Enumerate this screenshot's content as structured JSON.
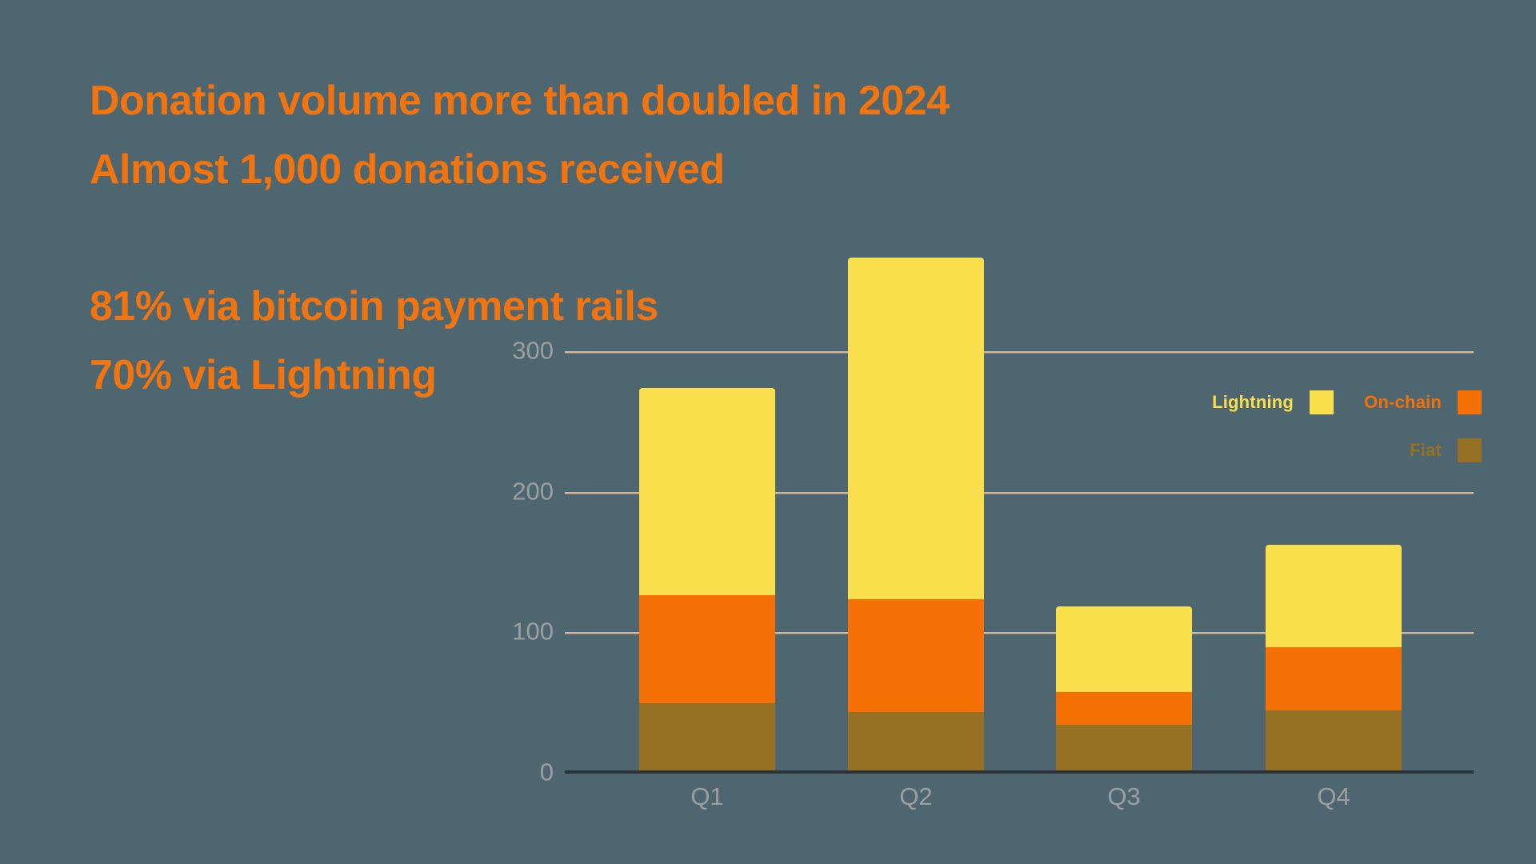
{
  "colors": {
    "background": "#4D6670",
    "headline": "#F2740E",
    "axis_text": "#9C9FA0",
    "gridline": "#B9BCBD",
    "gridline_accent": "#CF8A3E",
    "axis_line": "#2E3236",
    "lightning": "#FADF4D",
    "onchain": "#F57106",
    "fiat": "#967123"
  },
  "headline": {
    "line1": "Donation volume more than doubled in 2024",
    "line2": "Almost 1,000 donations received",
    "line3": "81% via bitcoin payment rails",
    "line4": "70% via Lightning"
  },
  "legend": {
    "rows": [
      [
        {
          "id": "lightning",
          "label": "Lightning",
          "color": "#FADF4D"
        },
        {
          "id": "onchain",
          "label": "On-chain",
          "color": "#F57106"
        }
      ],
      [
        {
          "id": "fiat",
          "label": "Fiat",
          "color": "#967123"
        }
      ]
    ]
  },
  "chart_data": {
    "type": "bar",
    "stacked": true,
    "title": "",
    "xlabel": "",
    "ylabel": "",
    "categories": [
      "Q1",
      "Q2",
      "Q3",
      "Q4"
    ],
    "series": [
      {
        "name": "Fiat",
        "color": "#967123",
        "values": [
          50,
          44,
          35,
          45
        ]
      },
      {
        "name": "On-chain",
        "color": "#F57106",
        "values": [
          77,
          80,
          23,
          45
        ]
      },
      {
        "name": "Lightning",
        "color": "#FADF4D",
        "values": [
          147,
          243,
          61,
          73
        ]
      }
    ],
    "totals": [
      274,
      367,
      119,
      163
    ],
    "yticks": [
      0,
      100,
      200,
      300
    ],
    "ytick_labels": [
      "0",
      "100",
      "200",
      "300"
    ],
    "ylim": [
      0,
      400
    ],
    "grid": true,
    "legend_position": "upper-right"
  }
}
